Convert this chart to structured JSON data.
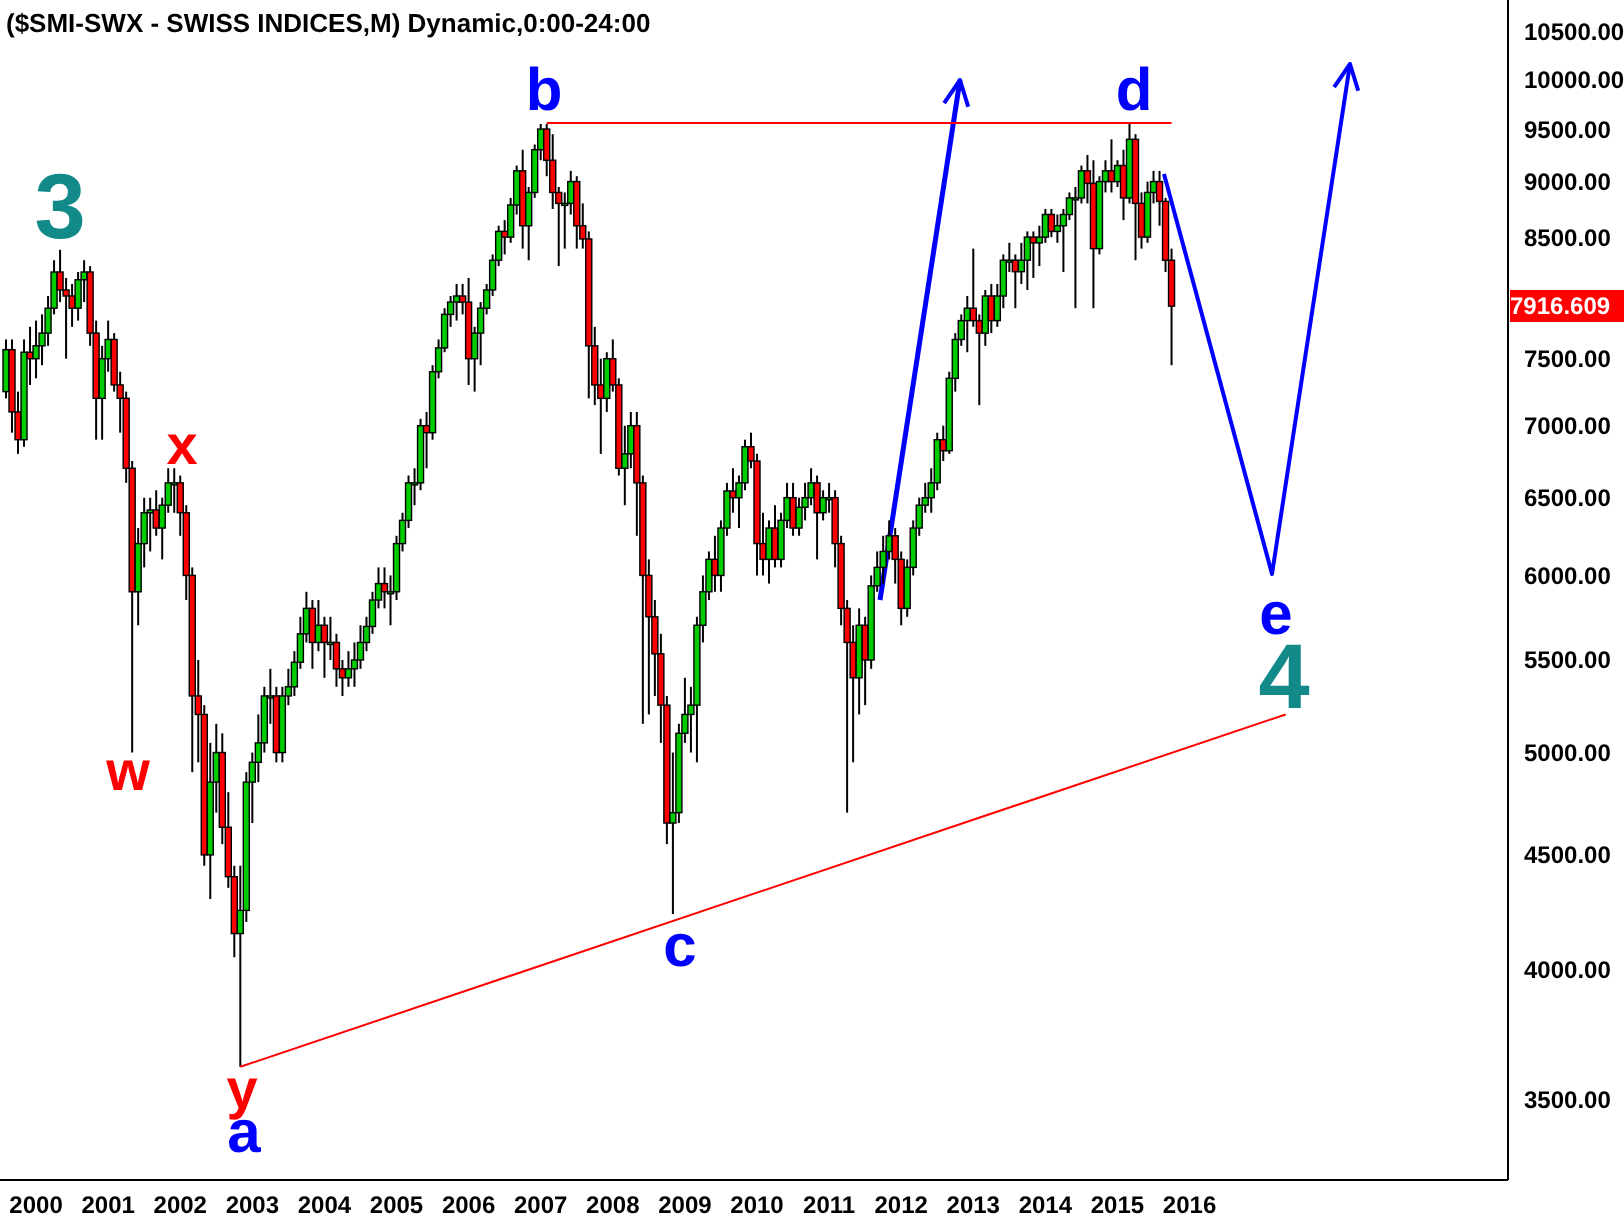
{
  "chart_data": {
    "type": "candlestick",
    "title": "($SMI-SWX - SWISS INDICES,M) Dynamic,0:00-24:00",
    "log": "y",
    "xlim": [
      "1999-11",
      "2020-10"
    ],
    "xticks": [
      {
        "value": "2000-05",
        "label": "2000"
      },
      {
        "value": "2001-05",
        "label": "2001"
      },
      {
        "value": "2002-05",
        "label": "2002"
      },
      {
        "value": "2003-05",
        "label": "2003"
      },
      {
        "value": "2004-05",
        "label": "2004"
      },
      {
        "value": "2005-05",
        "label": "2005"
      },
      {
        "value": "2006-05",
        "label": "2006"
      },
      {
        "value": "2007-05",
        "label": "2007"
      },
      {
        "value": "2008-05",
        "label": "2008"
      },
      {
        "value": "2009-05",
        "label": "2009"
      },
      {
        "value": "2010-05",
        "label": "2010"
      },
      {
        "value": "2011-05",
        "label": "2011"
      },
      {
        "value": "2012-05",
        "label": "2012"
      },
      {
        "value": "2013-05",
        "label": "2013"
      },
      {
        "value": "2014-05",
        "label": "2014"
      },
      {
        "value": "2015-05",
        "label": "2015"
      },
      {
        "value": "2016-05",
        "label": "2016"
      }
    ],
    "ylim": [
      3220,
      10850
    ],
    "yticks": [
      {
        "value": 3500,
        "label": "3500.00"
      },
      {
        "value": 4000,
        "label": "4000.00"
      },
      {
        "value": 4500,
        "label": "4500.00"
      },
      {
        "value": 5000,
        "label": "5000.00"
      },
      {
        "value": 5500,
        "label": "5500.00"
      },
      {
        "value": 6000,
        "label": "6000.00"
      },
      {
        "value": 6500,
        "label": "6500.00"
      },
      {
        "value": 7000,
        "label": "7000.00"
      },
      {
        "value": 7500,
        "label": "7500.00"
      },
      {
        "value": 8500,
        "label": "8500.00"
      },
      {
        "value": 9000,
        "label": "9000.00"
      },
      {
        "value": 9500,
        "label": "9500.00"
      },
      {
        "value": 10000,
        "label": "10000.00"
      },
      {
        "value": 10500,
        "label": "10500.00"
      }
    ],
    "x": [
      "1999-12",
      "2000-01",
      "2000-02",
      "2000-03",
      "2000-04",
      "2000-05",
      "2000-06",
      "2000-07",
      "2000-08",
      "2000-09",
      "2000-10",
      "2000-11",
      "2000-12",
      "2001-01",
      "2001-02",
      "2001-03",
      "2001-04",
      "2001-05",
      "2001-06",
      "2001-07",
      "2001-08",
      "2001-09",
      "2001-10",
      "2001-11",
      "2001-12",
      "2002-01",
      "2002-02",
      "2002-03",
      "2002-04",
      "2002-05",
      "2002-06",
      "2002-07",
      "2002-08",
      "2002-09",
      "2002-10",
      "2002-11",
      "2002-12",
      "2003-01",
      "2003-02",
      "2003-03",
      "2003-04",
      "2003-05",
      "2003-06",
      "2003-07",
      "2003-08",
      "2003-09",
      "2003-10",
      "2003-11",
      "2003-12",
      "2004-01",
      "2004-02",
      "2004-03",
      "2004-04",
      "2004-05",
      "2004-06",
      "2004-07",
      "2004-08",
      "2004-09",
      "2004-10",
      "2004-11",
      "2004-12",
      "2005-01",
      "2005-02",
      "2005-03",
      "2005-04",
      "2005-05",
      "2005-06",
      "2005-07",
      "2005-08",
      "2005-09",
      "2005-10",
      "2005-11",
      "2005-12",
      "2006-01",
      "2006-02",
      "2006-03",
      "2006-04",
      "2006-05",
      "2006-06",
      "2006-07",
      "2006-08",
      "2006-09",
      "2006-10",
      "2006-11",
      "2006-12",
      "2007-01",
      "2007-02",
      "2007-03",
      "2007-04",
      "2007-05",
      "2007-06",
      "2007-07",
      "2007-08",
      "2007-09",
      "2007-10",
      "2007-11",
      "2007-12",
      "2008-01",
      "2008-02",
      "2008-03",
      "2008-04",
      "2008-05",
      "2008-06",
      "2008-07",
      "2008-08",
      "2008-09",
      "2008-10",
      "2008-11",
      "2008-12",
      "2009-01",
      "2009-02",
      "2009-03",
      "2009-04",
      "2009-05",
      "2009-06",
      "2009-07",
      "2009-08",
      "2009-09",
      "2009-10",
      "2009-11",
      "2009-12",
      "2010-01",
      "2010-02",
      "2010-03",
      "2010-04",
      "2010-05",
      "2010-06",
      "2010-07",
      "2010-08",
      "2010-09",
      "2010-10",
      "2010-11",
      "2010-12",
      "2011-01",
      "2011-02",
      "2011-03",
      "2011-04",
      "2011-05",
      "2011-06",
      "2011-07",
      "2011-08",
      "2011-09",
      "2011-10",
      "2011-11",
      "2011-12",
      "2012-01",
      "2012-02",
      "2012-03",
      "2012-04",
      "2012-05",
      "2012-06",
      "2012-07",
      "2012-08",
      "2012-09",
      "2012-10",
      "2012-11",
      "2012-12",
      "2013-01",
      "2013-02",
      "2013-03",
      "2013-04",
      "2013-05",
      "2013-06",
      "2013-07",
      "2013-08",
      "2013-09",
      "2013-10",
      "2013-11",
      "2013-12",
      "2014-01",
      "2014-02",
      "2014-03",
      "2014-04",
      "2014-05",
      "2014-06",
      "2014-07",
      "2014-08",
      "2014-09",
      "2014-10",
      "2014-11",
      "2014-12",
      "2015-01",
      "2015-02",
      "2015-03",
      "2015-04",
      "2015-05",
      "2015-06",
      "2015-07",
      "2015-08",
      "2015-09",
      "2015-10",
      "2015-11",
      "2015-12",
      "2016-01",
      "2016-02"
    ],
    "ohlc": [
      [
        7250,
        7650,
        7200,
        7570
      ],
      [
        7570,
        7650,
        6950,
        7100
      ],
      [
        7100,
        7250,
        6800,
        6900
      ],
      [
        6900,
        7650,
        6850,
        7550
      ],
      [
        7550,
        7750,
        7300,
        7500
      ],
      [
        7500,
        7800,
        7350,
        7600
      ],
      [
        7600,
        7850,
        7450,
        7700
      ],
      [
        7700,
        8000,
        7600,
        7900
      ],
      [
        7900,
        8300,
        7850,
        8200
      ],
      [
        8200,
        8390,
        7950,
        8050
      ],
      [
        8050,
        8150,
        7500,
        8000
      ],
      [
        8000,
        8100,
        7750,
        7900
      ],
      [
        7900,
        8200,
        7800,
        8135
      ],
      [
        8135,
        8300,
        7950,
        8200
      ],
      [
        8200,
        8250,
        7600,
        7700
      ],
      [
        7700,
        7800,
        6900,
        7200
      ],
      [
        7200,
        7600,
        6900,
        7500
      ],
      [
        7500,
        7800,
        7400,
        7650
      ],
      [
        7650,
        7700,
        7250,
        7300
      ],
      [
        7300,
        7400,
        6950,
        7200
      ],
      [
        7200,
        7250,
        6600,
        6700
      ],
      [
        6700,
        6750,
        5000,
        5900
      ],
      [
        5900,
        6300,
        5700,
        6200
      ],
      [
        6200,
        6500,
        6050,
        6400
      ],
      [
        6400,
        6500,
        6150,
        6418
      ],
      [
        6418,
        6550,
        6250,
        6300
      ],
      [
        6300,
        6500,
        6100,
        6450
      ],
      [
        6450,
        6700,
        6400,
        6600
      ],
      [
        6600,
        6700,
        6400,
        6600
      ],
      [
        6600,
        6650,
        6250,
        6400
      ],
      [
        6400,
        6450,
        5850,
        6000
      ],
      [
        6000,
        6050,
        4900,
        5300
      ],
      [
        5300,
        5500,
        4950,
        5200
      ],
      [
        5200,
        5250,
        4450,
        4500
      ],
      [
        4500,
        5050,
        4300,
        4850
      ],
      [
        4850,
        5150,
        4700,
        5000
      ],
      [
        5000,
        5100,
        4550,
        4630
      ],
      [
        4630,
        4800,
        4350,
        4400
      ],
      [
        4400,
        4450,
        4050,
        4150
      ],
      [
        4150,
        4450,
        3618,
        4250
      ],
      [
        4250,
        4900,
        4200,
        4850
      ],
      [
        4850,
        5000,
        4650,
        4950
      ],
      [
        4950,
        5200,
        4850,
        5050
      ],
      [
        5050,
        5350,
        5000,
        5300
      ],
      [
        5300,
        5450,
        5150,
        5300
      ],
      [
        5300,
        5350,
        4950,
        5000
      ],
      [
        5000,
        5350,
        4950,
        5300
      ],
      [
        5300,
        5450,
        5250,
        5350
      ],
      [
        5350,
        5550,
        5300,
        5487
      ],
      [
        5487,
        5750,
        5450,
        5650
      ],
      [
        5650,
        5900,
        5600,
        5800
      ],
      [
        5800,
        5850,
        5450,
        5600
      ],
      [
        5600,
        5850,
        5550,
        5700
      ],
      [
        5700,
        5750,
        5400,
        5600
      ],
      [
        5600,
        5750,
        5500,
        5600
      ],
      [
        5600,
        5650,
        5350,
        5450
      ],
      [
        5450,
        5500,
        5300,
        5400
      ],
      [
        5400,
        5550,
        5350,
        5450
      ],
      [
        5450,
        5600,
        5350,
        5500
      ],
      [
        5500,
        5700,
        5450,
        5600
      ],
      [
        5600,
        5750,
        5550,
        5693
      ],
      [
        5693,
        5900,
        5650,
        5850
      ],
      [
        5850,
        6050,
        5800,
        5950
      ],
      [
        5950,
        6050,
        5800,
        5900
      ],
      [
        5900,
        6000,
        5700,
        5900
      ],
      [
        5900,
        6250,
        5850,
        6200
      ],
      [
        6200,
        6400,
        6150,
        6350
      ],
      [
        6350,
        6650,
        6300,
        6600
      ],
      [
        6600,
        6700,
        6450,
        6600
      ],
      [
        6600,
        7050,
        6550,
        7000
      ],
      [
        7000,
        7100,
        6700,
        6950
      ],
      [
        6950,
        7450,
        6900,
        7400
      ],
      [
        7400,
        7650,
        7350,
        7584
      ],
      [
        7584,
        7900,
        7550,
        7850
      ],
      [
        7850,
        8000,
        7750,
        7950
      ],
      [
        7950,
        8100,
        7800,
        8000
      ],
      [
        8000,
        8100,
        7850,
        7950
      ],
      [
        7950,
        8150,
        7300,
        7500
      ],
      [
        7500,
        7750,
        7250,
        7700
      ],
      [
        7700,
        7950,
        7450,
        7900
      ],
      [
        7900,
        8100,
        7850,
        8050
      ],
      [
        8050,
        8350,
        8000,
        8300
      ],
      [
        8300,
        8600,
        8250,
        8550
      ],
      [
        8550,
        8650,
        8350,
        8500
      ],
      [
        8500,
        8850,
        8450,
        8786
      ],
      [
        8786,
        9150,
        8700,
        9100
      ],
      [
        9100,
        9300,
        8400,
        8600
      ],
      [
        8600,
        8950,
        8300,
        8900
      ],
      [
        8900,
        9350,
        8850,
        9300
      ],
      [
        9300,
        9550,
        9200,
        9500
      ],
      [
        9500,
        9550,
        9050,
        9200
      ],
      [
        9200,
        9450,
        8750,
        8900
      ],
      [
        8900,
        8950,
        8250,
        8800
      ],
      [
        8800,
        8900,
        8400,
        8800
      ],
      [
        8800,
        9100,
        8700,
        9000
      ],
      [
        9000,
        9050,
        8400,
        8600
      ],
      [
        8600,
        8800,
        8400,
        8484
      ],
      [
        8484,
        8550,
        7200,
        7600
      ],
      [
        7600,
        7750,
        7150,
        7300
      ],
      [
        7300,
        7500,
        6800,
        7200
      ],
      [
        7200,
        7550,
        7100,
        7500
      ],
      [
        7500,
        7650,
        7250,
        7300
      ],
      [
        7300,
        7350,
        6650,
        6700
      ],
      [
        6700,
        7000,
        6450,
        6800
      ],
      [
        6800,
        7100,
        6700,
        7000
      ],
      [
        7000,
        7100,
        6250,
        6600
      ],
      [
        6600,
        6650,
        5150,
        6000
      ],
      [
        6000,
        6100,
        5200,
        5750
      ],
      [
        5750,
        5850,
        5300,
        5535
      ],
      [
        5535,
        5650,
        5050,
        5250
      ],
      [
        5250,
        5300,
        4550,
        4650
      ],
      [
        4650,
        5000,
        4234,
        4700
      ],
      [
        4700,
        5150,
        4650,
        5100
      ],
      [
        5100,
        5400,
        5050,
        5200
      ],
      [
        5200,
        5350,
        5000,
        5250
      ],
      [
        5250,
        5750,
        4950,
        5700
      ],
      [
        5700,
        6000,
        5600,
        5900
      ],
      [
        5900,
        6150,
        5850,
        6100
      ],
      [
        6100,
        6250,
        5900,
        6000
      ],
      [
        6000,
        6350,
        5900,
        6300
      ],
      [
        6300,
        6600,
        6250,
        6545
      ],
      [
        6545,
        6700,
        6400,
        6500
      ],
      [
        6500,
        6650,
        6300,
        6600
      ],
      [
        6600,
        6900,
        6550,
        6850
      ],
      [
        6850,
        6950,
        6700,
        6750
      ],
      [
        6750,
        6800,
        6000,
        6200
      ],
      [
        6200,
        6400,
        6000,
        6100
      ],
      [
        6100,
        6350,
        5950,
        6300
      ],
      [
        6300,
        6450,
        6050,
        6100
      ],
      [
        6100,
        6400,
        6050,
        6350
      ],
      [
        6350,
        6600,
        6300,
        6500
      ],
      [
        6500,
        6600,
        6250,
        6300
      ],
      [
        6300,
        6500,
        6250,
        6436
      ],
      [
        6436,
        6600,
        6350,
        6500
      ],
      [
        6500,
        6700,
        6450,
        6600
      ],
      [
        6600,
        6650,
        6100,
        6400
      ],
      [
        6400,
        6550,
        6350,
        6500
      ],
      [
        6500,
        6600,
        6400,
        6500
      ],
      [
        6500,
        6550,
        6050,
        6200
      ],
      [
        6200,
        6250,
        5700,
        5800
      ],
      [
        5800,
        5850,
        4700,
        5600
      ],
      [
        5600,
        5700,
        4950,
        5400
      ],
      [
        5400,
        5800,
        5200,
        5700
      ],
      [
        5700,
        5750,
        5250,
        5500
      ],
      [
        5500,
        6000,
        5450,
        5936
      ],
      [
        5936,
        6150,
        5900,
        6050
      ],
      [
        6050,
        6250,
        5950,
        6150
      ],
      [
        6150,
        6350,
        6100,
        6250
      ],
      [
        6250,
        6300,
        5950,
        6100
      ],
      [
        6100,
        6150,
        5700,
        5800
      ],
      [
        5800,
        6100,
        5750,
        6050
      ],
      [
        6050,
        6350,
        6000,
        6300
      ],
      [
        6300,
        6500,
        6250,
        6450
      ],
      [
        6450,
        6600,
        6400,
        6500
      ],
      [
        6500,
        6700,
        6400,
        6600
      ],
      [
        6600,
        6950,
        6550,
        6900
      ],
      [
        6900,
        7000,
        6750,
        6822
      ],
      [
        6822,
        7400,
        6800,
        7350
      ],
      [
        7350,
        7700,
        7250,
        7650
      ],
      [
        7650,
        7850,
        7600,
        7800
      ],
      [
        7800,
        8000,
        7550,
        7900
      ],
      [
        7900,
        8400,
        7750,
        7800
      ],
      [
        7800,
        7850,
        7150,
        7700
      ],
      [
        7700,
        8050,
        7600,
        8000
      ],
      [
        8000,
        8100,
        7700,
        7800
      ],
      [
        7800,
        8100,
        7750,
        8000
      ],
      [
        8000,
        8350,
        7900,
        8300
      ],
      [
        8300,
        8450,
        8200,
        8300
      ],
      [
        8300,
        8350,
        7900,
        8203
      ],
      [
        8203,
        8450,
        8100,
        8300
      ],
      [
        8300,
        8550,
        8050,
        8500
      ],
      [
        8500,
        8550,
        8150,
        8450
      ],
      [
        8450,
        8600,
        8250,
        8500
      ],
      [
        8500,
        8750,
        8450,
        8700
      ],
      [
        8700,
        8750,
        8500,
        8550
      ],
      [
        8550,
        8700,
        8450,
        8600
      ],
      [
        8600,
        8750,
        8200,
        8700
      ],
      [
        8700,
        8900,
        8650,
        8850
      ],
      [
        8850,
        8950,
        7900,
        8850
      ],
      [
        8850,
        9150,
        8800,
        9100
      ],
      [
        9100,
        9250,
        8800,
        8983
      ],
      [
        8983,
        9200,
        7900,
        8400
      ],
      [
        8400,
        9050,
        8350,
        9000
      ],
      [
        9000,
        9200,
        8900,
        9100
      ],
      [
        9100,
        9400,
        8900,
        9000
      ],
      [
        9000,
        9200,
        8950,
        9150
      ],
      [
        9150,
        9300,
        8650,
        8850
      ],
      [
        8850,
        9550,
        8800,
        9400
      ],
      [
        9400,
        9450,
        8300,
        8800
      ],
      [
        8800,
        8900,
        8400,
        8500
      ],
      [
        8500,
        9000,
        8450,
        8900
      ],
      [
        8900,
        9100,
        8800,
        9000
      ],
      [
        9000,
        9100,
        8600,
        8818
      ],
      [
        8818,
        8850,
        8200,
        8300
      ],
      [
        8300,
        8400,
        7450,
        7916.609
      ]
    ],
    "series": [
      {
        "type": "line",
        "color": "#ff0000",
        "x": [
          "2007-06",
          "2016-02"
        ],
        "values": [
          9560,
          9560
        ]
      },
      {
        "type": "line",
        "color": "#ff0000",
        "x": [
          "2003-03",
          "2017-09"
        ],
        "values": [
          3618,
          5200
        ]
      }
    ],
    "annotations": [
      "3",
      "x",
      "w",
      "y",
      "a",
      "b",
      "c",
      "d",
      "e",
      "4",
      "7916.609"
    ]
  }
}
